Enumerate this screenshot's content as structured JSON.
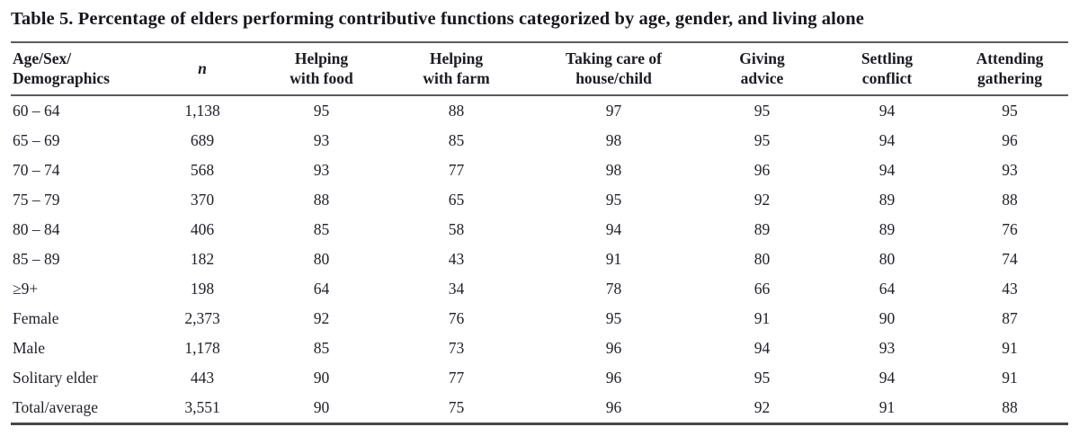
{
  "page": {
    "title": "Table 5. Percentage of elders performing contributive functions categorized by age, gender, and living alone"
  },
  "table": {
    "columns": [
      {
        "id": "demographics",
        "lines": [
          "Age/Sex/",
          "Demographics"
        ],
        "align": "left",
        "italic": false
      },
      {
        "id": "n",
        "lines": [
          "n"
        ],
        "align": "center",
        "italic": true
      },
      {
        "id": "helping-food",
        "lines": [
          "Helping",
          "with food"
        ],
        "align": "center",
        "italic": false
      },
      {
        "id": "helping-farm",
        "lines": [
          "Helping",
          "with farm"
        ],
        "align": "center",
        "italic": false
      },
      {
        "id": "care-house-child",
        "lines": [
          "Taking care of",
          "house/child"
        ],
        "align": "center",
        "italic": false
      },
      {
        "id": "giving-advice",
        "lines": [
          "Giving",
          "advice"
        ],
        "align": "center",
        "italic": false
      },
      {
        "id": "settling-conflict",
        "lines": [
          "Settling",
          "conflict"
        ],
        "align": "center",
        "italic": false
      },
      {
        "id": "attending-gathering",
        "lines": [
          "Attending",
          "gathering"
        ],
        "align": "center",
        "italic": false
      }
    ],
    "rows": [
      [
        "60 – 64",
        "1,138",
        "95",
        "88",
        "97",
        "95",
        "94",
        "95"
      ],
      [
        "65 – 69",
        "689",
        "93",
        "85",
        "98",
        "95",
        "94",
        "96"
      ],
      [
        "70 – 74",
        "568",
        "93",
        "77",
        "98",
        "96",
        "94",
        "93"
      ],
      [
        "75 – 79",
        "370",
        "88",
        "65",
        "95",
        "92",
        "89",
        "88"
      ],
      [
        "80 – 84",
        "406",
        "85",
        "58",
        "94",
        "89",
        "89",
        "76"
      ],
      [
        "85 – 89",
        "182",
        "80",
        "43",
        "91",
        "80",
        "80",
        "74"
      ],
      [
        "≥9+",
        "198",
        "64",
        "34",
        "78",
        "66",
        "64",
        "43"
      ],
      [
        "Female",
        "2,373",
        "92",
        "76",
        "95",
        "91",
        "90",
        "87"
      ],
      [
        "Male",
        "1,178",
        "85",
        "73",
        "96",
        "94",
        "93",
        "91"
      ],
      [
        "Solitary elder",
        "443",
        "90",
        "77",
        "96",
        "95",
        "94",
        "91"
      ],
      [
        "Total/average",
        "3,551",
        "90",
        "75",
        "96",
        "92",
        "91",
        "88"
      ]
    ]
  },
  "colors": {
    "text": "#21212a",
    "rule_top": "#5b5b5e",
    "rule_bottom": "#47474a",
    "background": "#ffffff"
  }
}
